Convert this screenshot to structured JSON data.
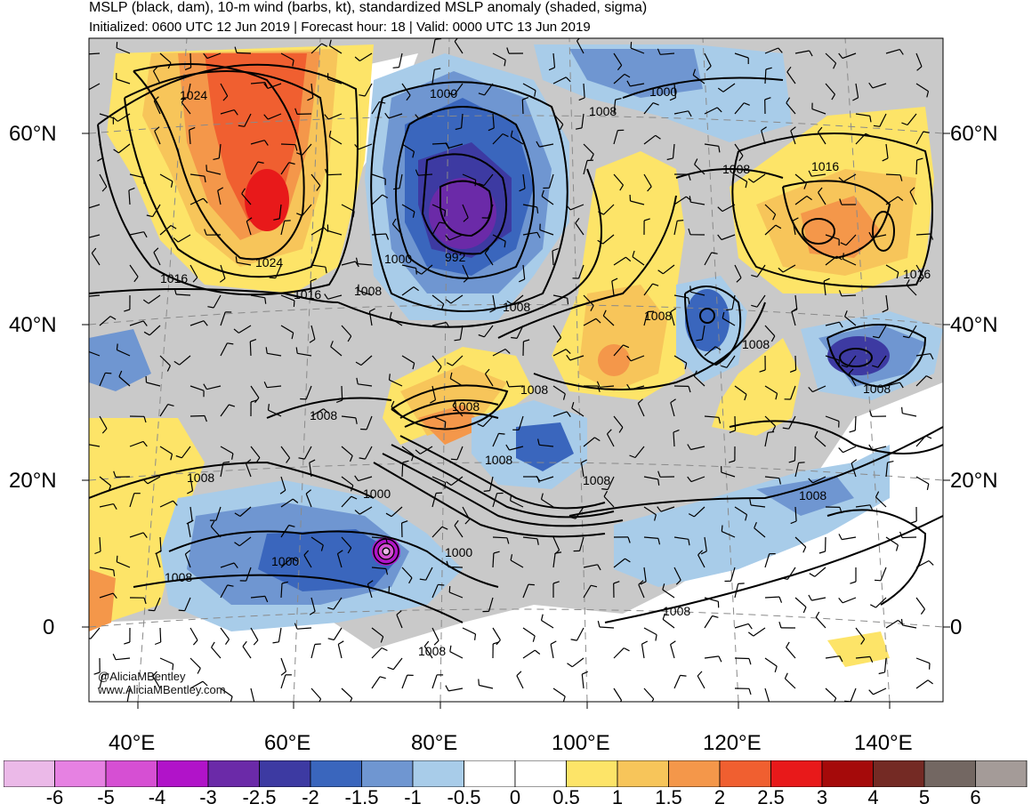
{
  "title": {
    "line1": "MSLP (black, dam), 10-m wind (barbs, kt), standardized MSLP anomaly (shaded, sigma)",
    "line2": "Initialized: 0600 UTC 12 Jun 2019 | Forecast hour: 18 | Valid: 0000 UTC 13 Jun 2019"
  },
  "axes": {
    "lat_left": [
      "60°N",
      "40°N",
      "20°N",
      "0"
    ],
    "lat_right": [
      "60°N",
      "40°N",
      "20°N",
      "0"
    ],
    "lon": [
      "40°E",
      "60°E",
      "80°E",
      "100°E",
      "120°E",
      "140°E"
    ]
  },
  "credits": {
    "handle": "@AliciaMBentley",
    "site": "www.AliciaMBentley.com"
  },
  "contour_labels": [
    "1024",
    "1024",
    "1016",
    "1016",
    "1008",
    "1000",
    "992",
    "1000",
    "1008",
    "1000",
    "1008",
    "1008",
    "1016",
    "1008",
    "1008",
    "1008",
    "1016",
    "1008",
    "1008",
    "1008",
    "1008",
    "1000",
    "1008",
    "1000",
    "1008",
    "1000",
    "1008",
    "1008",
    "1008",
    "1008"
  ],
  "colorbar": {
    "labels": [
      "-6",
      "-5",
      "-4",
      "-3",
      "-2.5",
      "-2",
      "-1.5",
      "-1",
      "-0.5",
      "0",
      "0.5",
      "1",
      "1.5",
      "2",
      "2.5",
      "3",
      "4",
      "5",
      "6"
    ],
    "colors": [
      "#ebb9e8",
      "#e681e2",
      "#d64fd3",
      "#b113c9",
      "#6b2aa8",
      "#3d3aa2",
      "#3a66bd",
      "#6f96d1",
      "#a8cce9",
      "#ffffff",
      "#ffffff",
      "#fde468",
      "#f7c55a",
      "#f4974a",
      "#f05f30",
      "#e8191a",
      "#a50a0a",
      "#742a24",
      "#736762",
      "#a49b98"
    ]
  },
  "colors": {
    "land_gray": "#c9c9c9",
    "ocean_white": "#ffffff",
    "contour": "#000000"
  }
}
